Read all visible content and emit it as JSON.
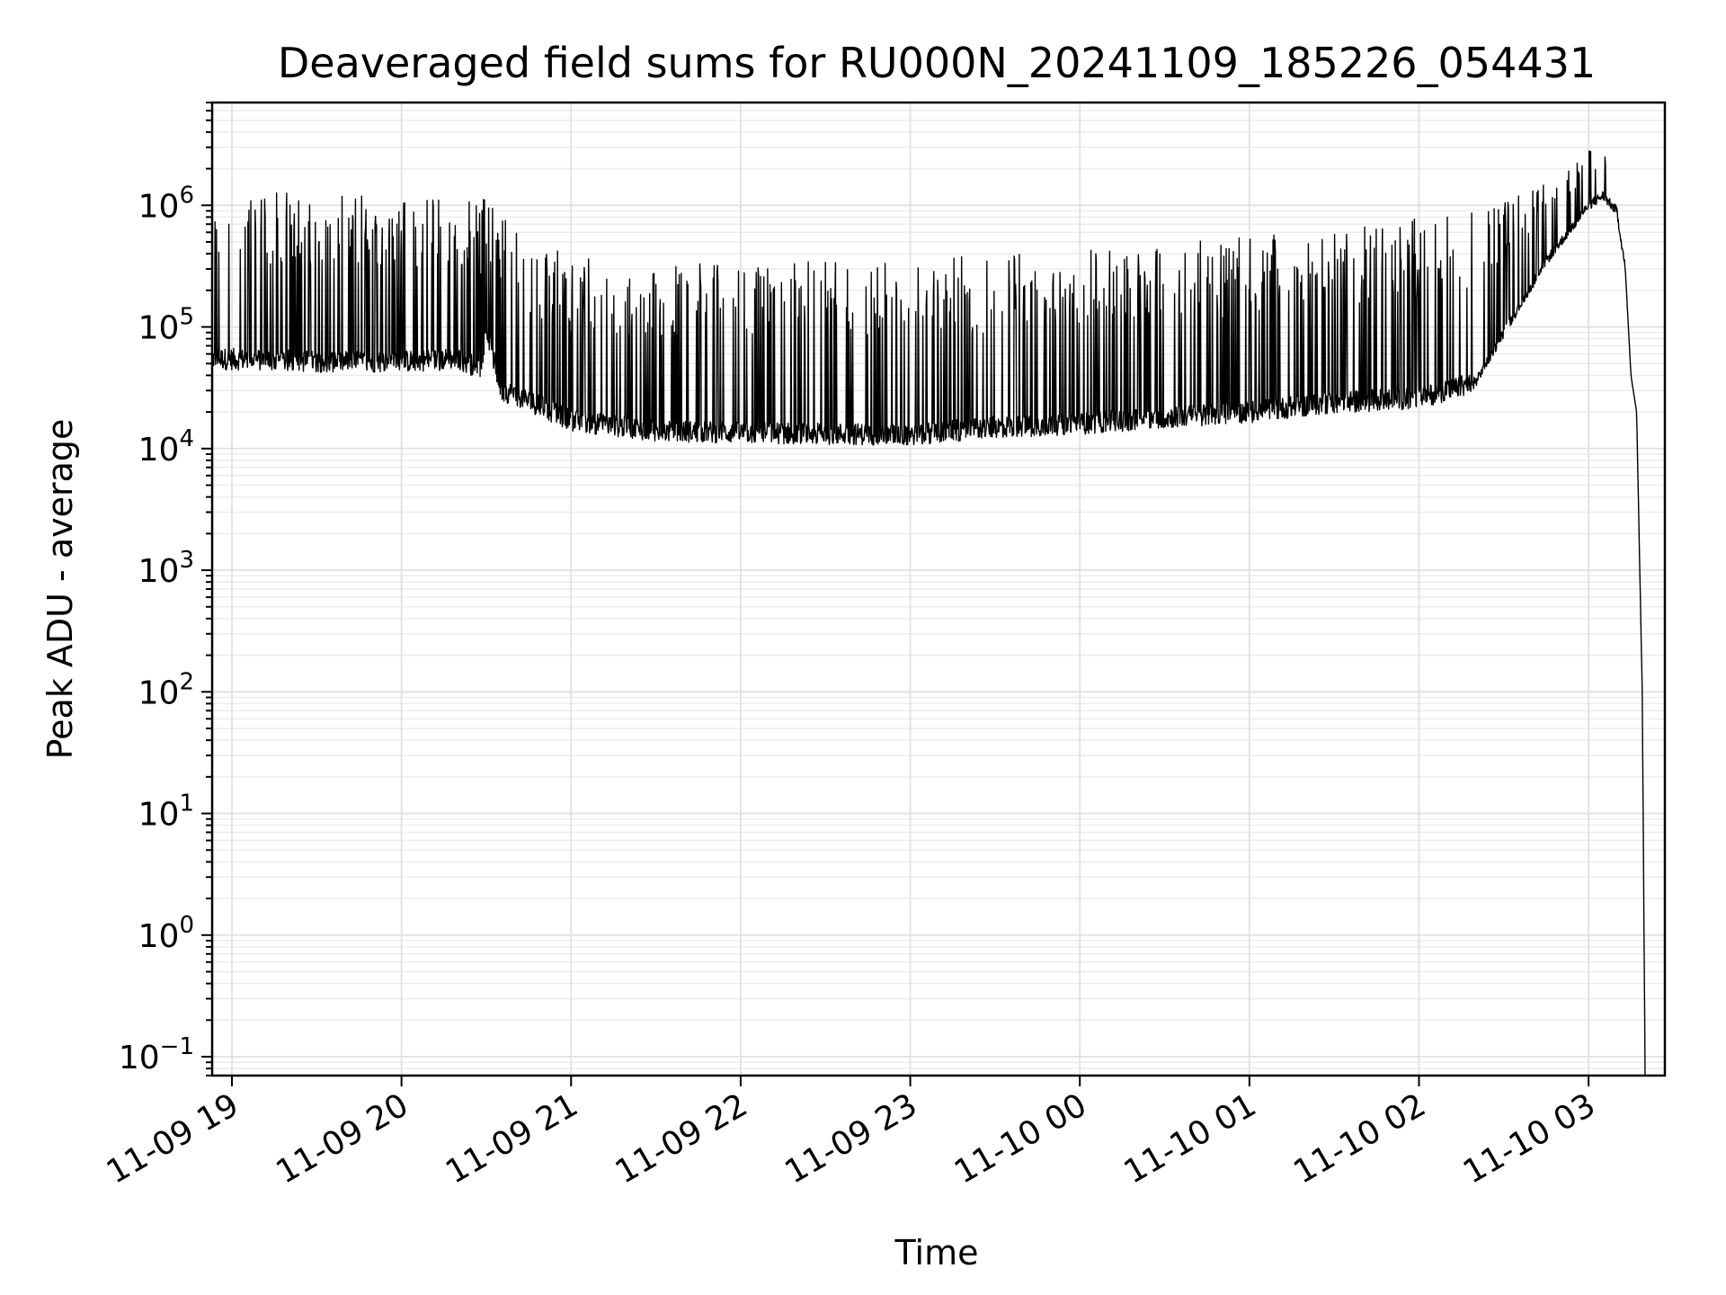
{
  "chart_data": {
    "type": "line",
    "title": "Deaveraged field sums for RU000N_20241109_185226_054431",
    "xlabel": "Time",
    "ylabel": "Peak ADU - average",
    "yscale": "log",
    "grid": true,
    "line_color": "#000000",
    "xlim": [
      "2024-11-09 18:53",
      "2024-11-10 03:27"
    ],
    "ylim": [
      0.07,
      7000000
    ],
    "x_ticks": [
      {
        "value": "2024-11-09 19:00",
        "label": "11-09 19"
      },
      {
        "value": "2024-11-09 20:00",
        "label": "11-09 20"
      },
      {
        "value": "2024-11-09 21:00",
        "label": "11-09 21"
      },
      {
        "value": "2024-11-09 22:00",
        "label": "11-09 22"
      },
      {
        "value": "2024-11-09 23:00",
        "label": "11-09 23"
      },
      {
        "value": "2024-11-10 00:00",
        "label": "11-10 00"
      },
      {
        "value": "2024-11-10 01:00",
        "label": "11-10 01"
      },
      {
        "value": "2024-11-10 02:00",
        "label": "11-10 02"
      },
      {
        "value": "2024-11-10 03:00",
        "label": "11-10 03"
      }
    ],
    "y_ticks": [
      {
        "value": 0.1,
        "base": "10",
        "exp": "−1"
      },
      {
        "value": 1,
        "base": "10",
        "exp": "0"
      },
      {
        "value": 10,
        "base": "10",
        "exp": "1"
      },
      {
        "value": 100,
        "base": "10",
        "exp": "2"
      },
      {
        "value": 1000,
        "base": "10",
        "exp": "3"
      },
      {
        "value": 10000,
        "base": "10",
        "exp": "4"
      },
      {
        "value": 100000,
        "base": "10",
        "exp": "5"
      },
      {
        "value": 1000000,
        "base": "10",
        "exp": "6"
      }
    ],
    "series": [
      {
        "baseline": [
          [
            "2024-11-09 18:53",
            55000
          ],
          [
            "2024-11-09 19:30",
            52000
          ],
          [
            "2024-11-09 20:00",
            52000
          ],
          [
            "2024-11-09 20:20",
            55000
          ],
          [
            "2024-11-09 20:28",
            45000
          ],
          [
            "2024-11-09 20:30",
            100000
          ],
          [
            "2024-11-09 20:35",
            30000
          ],
          [
            "2024-11-09 20:40",
            28000
          ],
          [
            "2024-11-09 21:00",
            17000
          ],
          [
            "2024-11-09 21:30",
            14000
          ],
          [
            "2024-11-09 22:00",
            13500
          ],
          [
            "2024-11-09 23:00",
            13000
          ],
          [
            "2024-11-09 23:30",
            15000
          ],
          [
            "2024-11-10 00:00",
            16000
          ],
          [
            "2024-11-10 00:30",
            18000
          ],
          [
            "2024-11-10 01:00",
            20000
          ],
          [
            "2024-11-10 01:30",
            24000
          ],
          [
            "2024-11-10 02:00",
            26000
          ],
          [
            "2024-11-10 02:20",
            35000
          ],
          [
            "2024-11-10 02:30",
            90000
          ],
          [
            "2024-11-10 02:45",
            350000
          ],
          [
            "2024-11-10 02:55",
            700000
          ],
          [
            "2024-11-10 03:00",
            1000000
          ],
          [
            "2024-11-10 03:05",
            1200000
          ],
          [
            "2024-11-10 03:10",
            900000
          ],
          [
            "2024-11-10 03:13",
            300000
          ],
          [
            "2024-11-10 03:15",
            40000
          ],
          [
            "2024-11-10 03:17",
            20000
          ],
          [
            "2024-11-10 03:19",
            100
          ],
          [
            "2024-11-10 03:20",
            0.07
          ]
        ],
        "spike_peaks": [
          [
            "2024-11-09 18:53",
            1300000
          ],
          [
            "2024-11-09 20:30",
            1200000
          ],
          [
            "2024-11-09 20:40",
            600000
          ],
          [
            "2024-11-09 21:00",
            380000
          ],
          [
            "2024-11-09 21:30",
            330000
          ],
          [
            "2024-11-09 22:00",
            340000
          ],
          [
            "2024-11-09 22:30",
            350000
          ],
          [
            "2024-11-09 23:00",
            360000
          ],
          [
            "2024-11-09 23:30",
            400000
          ],
          [
            "2024-11-10 00:00",
            440000
          ],
          [
            "2024-11-10 00:30",
            480000
          ],
          [
            "2024-11-10 01:00",
            550000
          ],
          [
            "2024-11-10 01:30",
            620000
          ],
          [
            "2024-11-10 02:00",
            800000
          ],
          [
            "2024-11-10 02:30",
            1100000
          ],
          [
            "2024-11-10 02:50",
            1700000
          ],
          [
            "2024-11-10 03:00",
            2900000
          ]
        ]
      }
    ]
  }
}
